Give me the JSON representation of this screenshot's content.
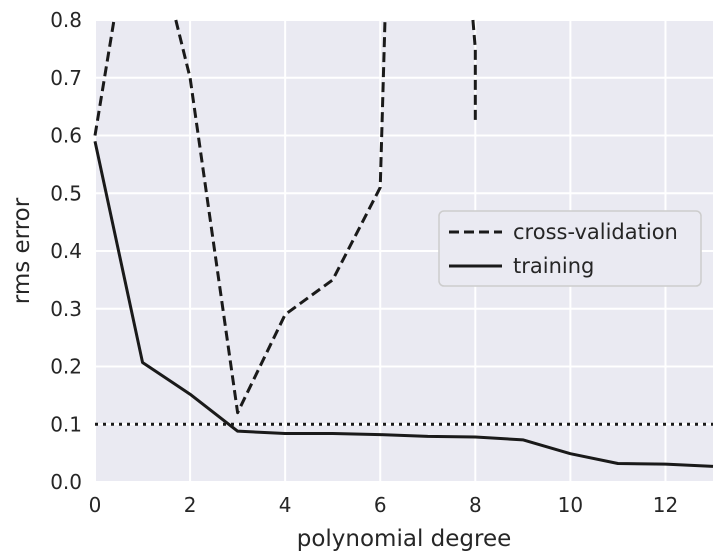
{
  "chart_data": {
    "type": "line",
    "title": "",
    "xlabel": "polynomial degree",
    "ylabel": "rms error",
    "xlim": [
      0,
      13
    ],
    "ylim": [
      0,
      0.8
    ],
    "xticks": [
      0,
      2,
      4,
      6,
      8,
      10,
      12
    ],
    "yticks": [
      0.0,
      0.1,
      0.2,
      0.3,
      0.4,
      0.5,
      0.6,
      0.7,
      0.8
    ],
    "xtick_labels": [
      "0",
      "2",
      "4",
      "6",
      "8",
      "10",
      "12"
    ],
    "ytick_labels": [
      "0.0",
      "0.1",
      "0.2",
      "0.3",
      "0.4",
      "0.5",
      "0.6",
      "0.7",
      "0.8"
    ],
    "grid": true,
    "legend_position": "center-right",
    "series": [
      {
        "name": "cross-validation",
        "style": "dashed",
        "color": "#1a1a1a",
        "segments": [
          {
            "x": [
              0,
              0.4
            ],
            "y": [
              0.6,
              0.8
            ]
          },
          {
            "x": [
              1.7,
              2,
              3,
              4,
              5,
              6,
              6.1
            ],
            "y": [
              0.8,
              0.7,
              0.12,
              0.29,
              0.35,
              0.51,
              0.8
            ]
          },
          {
            "x": [
              7.95,
              8,
              8
            ],
            "y": [
              0.8,
              0.75,
              0.62
            ]
          }
        ]
      },
      {
        "name": "training",
        "style": "solid",
        "color": "#1a1a1a",
        "x": [
          0,
          1,
          2,
          3,
          4,
          5,
          6,
          7,
          8,
          9,
          10,
          11,
          12,
          13
        ],
        "y": [
          0.59,
          0.207,
          0.152,
          0.088,
          0.084,
          0.084,
          0.082,
          0.079,
          0.078,
          0.073,
          0.049,
          0.032,
          0.031,
          0.027
        ]
      }
    ],
    "reference_line": {
      "y": 0.1,
      "style": "dotted",
      "color": "#1a1a1a"
    }
  }
}
